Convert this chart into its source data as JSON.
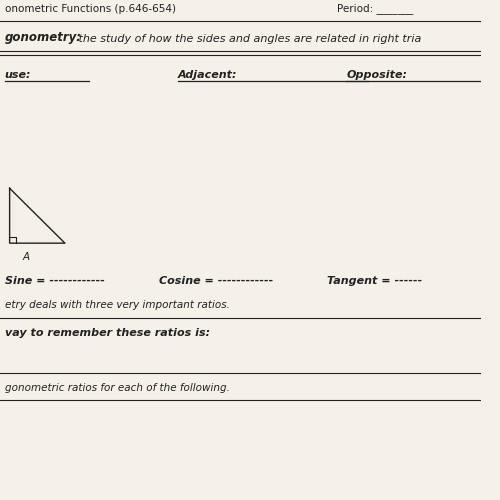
{
  "bg_color": "#f5f0e8",
  "line_color": "#222222",
  "title_line1": "onometric Functions (p.646-654)",
  "period_label": "Period: _______",
  "section_label_bold": "gonometry:",
  "section_label_rest": " the study of how the sides and angles are related in right tria",
  "col1_label": "use:",
  "col2_label": "Adjacent:",
  "col3_label": "Opposite:",
  "sine_label": "Sine = ------------",
  "cosine_label": "Cosine = ------------",
  "tangent_label": "Tangent = ------",
  "para1": "etry deals with three very important ratios.",
  "para2_bold": "vay to remember these ratios is:",
  "para3": "gonometric ratios for each of the following.",
  "label_A": "A"
}
